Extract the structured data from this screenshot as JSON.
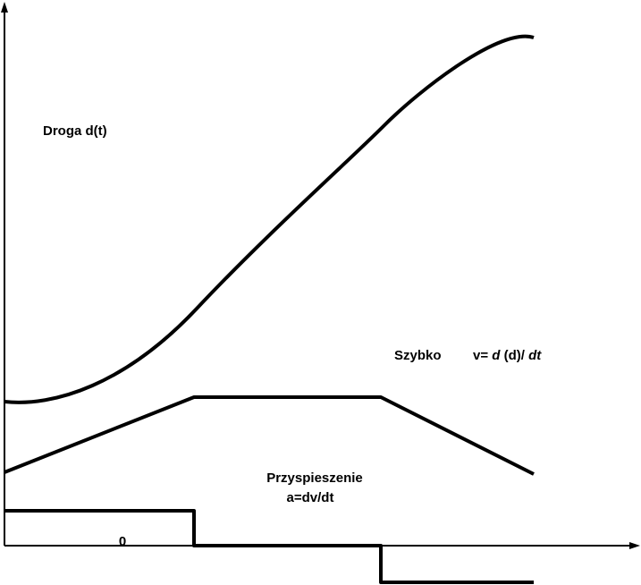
{
  "labels": {
    "distance": "Droga d(t)",
    "speed_word": "Szybko",
    "speed_formula_lead": "v= ",
    "speed_formula_d": "d",
    "speed_formula_mid": "(d)/",
    "speed_formula_dt": "dt",
    "acceleration_word": "Przyspieszenie",
    "acceleration_formula": "a=dv/dt",
    "zero": "0"
  },
  "diagram": {
    "curves": [
      "distance",
      "speed",
      "acceleration"
    ],
    "speed_profile": "ramp up, constant, ramp down",
    "acceleration_profile": "positive, zero, negative"
  }
}
